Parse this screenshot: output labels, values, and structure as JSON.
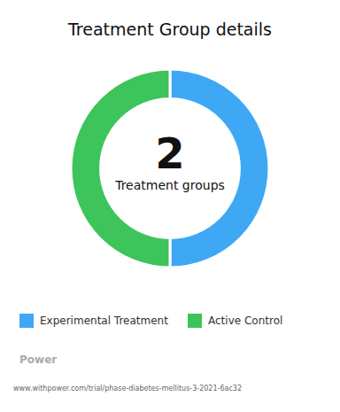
{
  "chart_data": {
    "type": "donut",
    "title": "Treatment Group details",
    "categories": [
      "Experimental Treatment",
      "Active Control"
    ],
    "values": [
      0.5,
      0.5
    ],
    "colors": [
      "#3ea8f5",
      "#3dc45a"
    ],
    "legend": "bottom",
    "annotations": [
      "2",
      "Treatment groups",
      "Power",
      "www.withpower.com/trial/phase-diabetes-mellitus-3-2021-6ac32"
    ]
  }
}
